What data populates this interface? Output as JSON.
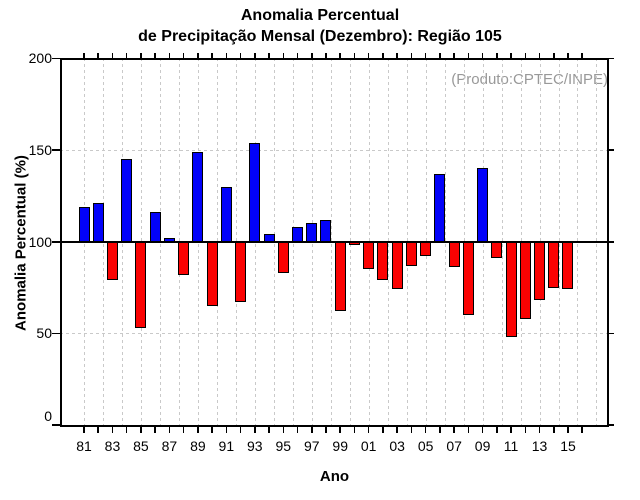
{
  "title": {
    "line1": "Anomalia Percentual",
    "line2": "de Precipitação Mensal (Dezembro): Região 105"
  },
  "annotation": "(Produto:CPTEC/INPE)",
  "chart_data": {
    "type": "bar",
    "title": "Anomalia Percentual de Precipitação Mensal (Dezembro): Região 105",
    "xlabel": "Ano",
    "ylabel": "Anomalia Percentual (%)",
    "ylim": [
      0,
      200
    ],
    "baseline": 100,
    "grid": true,
    "legend_position": "none",
    "yticks": [
      0,
      50,
      100,
      150,
      200
    ],
    "ytick_labels": [
      "0",
      "50",
      "100",
      "150",
      "200"
    ],
    "x_tick_labels": [
      "81",
      "83",
      "85",
      "87",
      "89",
      "91",
      "93",
      "95",
      "97",
      "99",
      "01",
      "03",
      "05",
      "07",
      "09",
      "11",
      "13",
      "15"
    ],
    "colors": {
      "above": "#0202fa",
      "below": "#fa0202",
      "grid": "#c9c9c9",
      "annotation": "#999999"
    },
    "x": [
      1981,
      1982,
      1983,
      1984,
      1985,
      1986,
      1987,
      1988,
      1989,
      1990,
      1991,
      1992,
      1993,
      1994,
      1995,
      1996,
      1997,
      1998,
      1999,
      2000,
      2001,
      2002,
      2003,
      2004,
      2005,
      2006,
      2007,
      2008,
      2009,
      2010,
      2011,
      2012,
      2013,
      2014,
      2015
    ],
    "values": [
      119,
      121,
      79,
      145,
      53,
      116,
      102,
      82,
      149,
      65,
      130,
      67,
      154,
      104,
      83,
      108,
      110,
      112,
      62,
      98,
      85,
      79,
      74,
      87,
      92,
      137,
      86,
      60,
      140,
      91,
      48,
      58,
      68,
      75,
      74
    ]
  }
}
